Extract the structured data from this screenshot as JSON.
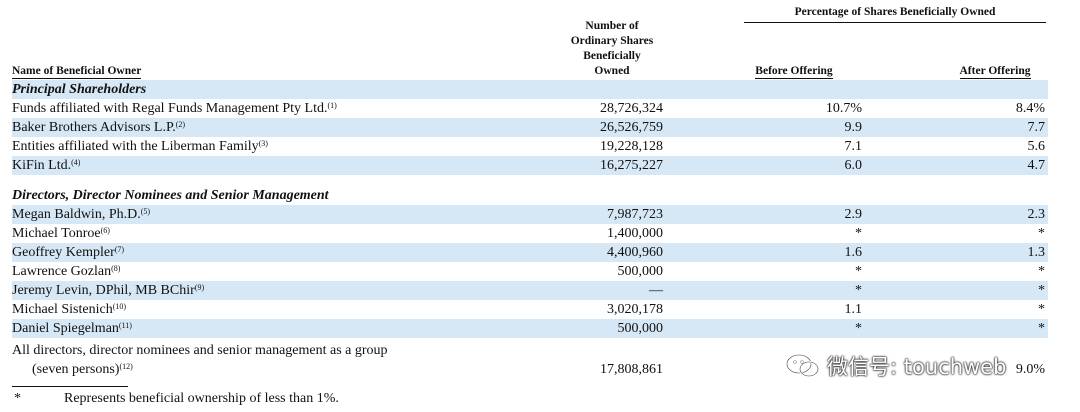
{
  "headers": {
    "pct_group": "Percentage of Shares Beneficially Owned",
    "num_lines": [
      "Number of",
      "Ordinary Shares",
      "Beneficially",
      "Owned"
    ],
    "owner": "Name of Beneficial Owner",
    "before": "Before Offering",
    "after": "After Offering"
  },
  "rows": [
    {
      "type": "section",
      "name": "Principal Shareholders"
    },
    {
      "name": "Funds affiliated with Regal Funds Management Pty Ltd.",
      "note": "(1)",
      "shares": "28,726,324",
      "before": "10.7%",
      "after": "8.4%"
    },
    {
      "name": "Baker Brothers Advisors L.P.",
      "note": "(2)",
      "shares": "26,526,759",
      "before": "9.9",
      "after": "7.7"
    },
    {
      "name": "Entities affiliated with the Liberman Family",
      "note": "(3)",
      "shares": "19,228,128",
      "before": "7.1",
      "after": "5.6"
    },
    {
      "name": "KiFin Ltd.",
      "note": "(4)",
      "shares": "16,275,227",
      "before": "6.0",
      "after": "4.7"
    },
    {
      "type": "section",
      "name": "Directors, Director Nominees and Senior Management"
    },
    {
      "name": "Megan Baldwin, Ph.D.",
      "note": "(5)",
      "shares": "7,987,723",
      "before": "2.9",
      "after": "2.3"
    },
    {
      "name": "Michael Tonroe",
      "note": "(6)",
      "shares": "1,400,000",
      "before": "*",
      "after": "*"
    },
    {
      "name": "Geoffrey Kempler",
      "note": "(7)",
      "shares": "4,400,960",
      "before": "1.6",
      "after": "1.3"
    },
    {
      "name": "Lawrence Gozlan",
      "note": "(8)",
      "shares": "500,000",
      "before": "*",
      "after": "*"
    },
    {
      "name": "Jeremy Levin, DPhil, MB BChir",
      "note": "(9)",
      "shares": "—",
      "before": "*",
      "after": "*"
    },
    {
      "name": "Michael Sistenich",
      "note": "(10)",
      "shares": "3,020,178",
      "before": "1.1",
      "after": "*"
    },
    {
      "name": "Daniel Spiegelman",
      "note": "(11)",
      "shares": "500,000",
      "before": "*",
      "after": "*"
    }
  ],
  "group_row": {
    "line1": "All directors, director nominees and senior management as a group",
    "line2": "(seven persons)",
    "note": "(12)",
    "shares": "17,808,861",
    "after_partial": "9.0%"
  },
  "footnote": {
    "symbol": "*",
    "text": "Represents beneficial ownership of less than 1%."
  },
  "watermark": {
    "text": "微信号: touchweb",
    "icon": "wechat-logo-icon"
  }
}
